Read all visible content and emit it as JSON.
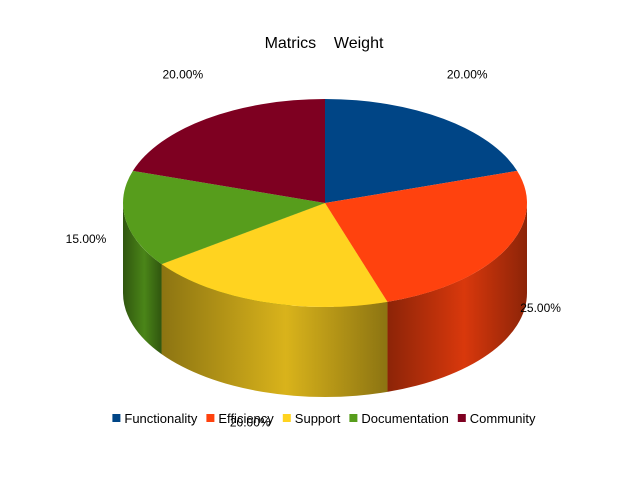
{
  "chart_data": {
    "type": "pie",
    "title": "Matrics    Weight",
    "categories": [
      "Functionality",
      "Efficiency",
      "Support",
      "Documentation",
      "Community"
    ],
    "values": [
      20,
      25,
      20,
      15,
      20
    ],
    "labels": [
      "20.00%",
      "25.00%",
      "20.00%",
      "15.00%",
      "20.00%"
    ],
    "colors": [
      "#004586",
      "#ff420e",
      "#ffd320",
      "#579d1c",
      "#7e0021"
    ],
    "legend_position": "bottom",
    "style": "3d"
  }
}
